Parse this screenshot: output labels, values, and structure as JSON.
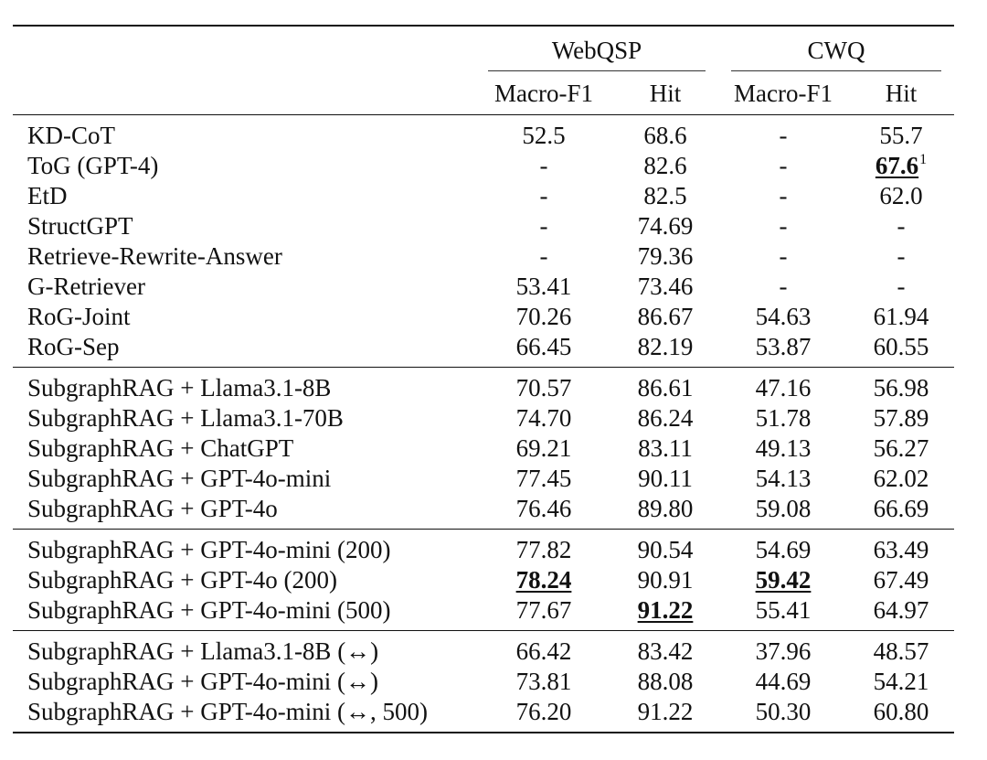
{
  "table": {
    "groups": [
      {
        "label": "WebQSP",
        "columns": [
          "Macro-F1",
          "Hit"
        ]
      },
      {
        "label": "CWQ",
        "columns": [
          "Macro-F1",
          "Hit"
        ]
      }
    ],
    "footnote_mark": "1",
    "sections": [
      [
        {
          "method": "KD-CoT",
          "webqsp_f1": "52.5",
          "webqsp_hit": "68.6",
          "cwq_f1": "-",
          "cwq_hit": "55.7"
        },
        {
          "method": "ToG (GPT-4)",
          "webqsp_f1": "-",
          "webqsp_hit": "82.6",
          "cwq_f1": "-",
          "cwq_hit": "67.6"
        },
        {
          "method": "EtD",
          "webqsp_f1": "-",
          "webqsp_hit": "82.5",
          "cwq_f1": "-",
          "cwq_hit": "62.0"
        },
        {
          "method": "StructGPT",
          "webqsp_f1": "-",
          "webqsp_hit": "74.69",
          "cwq_f1": "-",
          "cwq_hit": "-"
        },
        {
          "method": "Retrieve-Rewrite-Answer",
          "webqsp_f1": "-",
          "webqsp_hit": "79.36",
          "cwq_f1": "-",
          "cwq_hit": "-"
        },
        {
          "method": "G-Retriever",
          "webqsp_f1": "53.41",
          "webqsp_hit": "73.46",
          "cwq_f1": "-",
          "cwq_hit": "-"
        },
        {
          "method": "RoG-Joint",
          "webqsp_f1": "70.26",
          "webqsp_hit": "86.67",
          "cwq_f1": "54.63",
          "cwq_hit": "61.94"
        },
        {
          "method": "RoG-Sep",
          "webqsp_f1": "66.45",
          "webqsp_hit": "82.19",
          "cwq_f1": "53.87",
          "cwq_hit": "60.55"
        }
      ],
      [
        {
          "method": "SubgraphRAG + Llama3.1-8B",
          "webqsp_f1": "70.57",
          "webqsp_hit": "86.61",
          "cwq_f1": "47.16",
          "cwq_hit": "56.98"
        },
        {
          "method": "SubgraphRAG + Llama3.1-70B",
          "webqsp_f1": "74.70",
          "webqsp_hit": "86.24",
          "cwq_f1": "51.78",
          "cwq_hit": "57.89"
        },
        {
          "method": "SubgraphRAG + ChatGPT",
          "webqsp_f1": "69.21",
          "webqsp_hit": "83.11",
          "cwq_f1": "49.13",
          "cwq_hit": "56.27"
        },
        {
          "method": "SubgraphRAG + GPT-4o-mini",
          "webqsp_f1": "77.45",
          "webqsp_hit": "90.11",
          "cwq_f1": "54.13",
          "cwq_hit": "62.02"
        },
        {
          "method": "SubgraphRAG + GPT-4o",
          "webqsp_f1": "76.46",
          "webqsp_hit": "89.80",
          "cwq_f1": "59.08",
          "cwq_hit": "66.69"
        }
      ],
      [
        {
          "method": "SubgraphRAG + GPT-4o-mini (200)",
          "webqsp_f1": "77.82",
          "webqsp_hit": "90.54",
          "cwq_f1": "54.69",
          "cwq_hit": "63.49"
        },
        {
          "method": "SubgraphRAG + GPT-4o (200)",
          "webqsp_f1": "78.24",
          "webqsp_hit": "90.91",
          "cwq_f1": "59.42",
          "cwq_hit": "67.49"
        },
        {
          "method": "SubgraphRAG + GPT-4o-mini (500)",
          "webqsp_f1": "77.67",
          "webqsp_hit": "91.22",
          "cwq_f1": "55.41",
          "cwq_hit": "64.97"
        }
      ],
      [
        {
          "method": "SubgraphRAG + Llama3.1-8B (↔)",
          "webqsp_f1": "66.42",
          "webqsp_hit": "83.42",
          "cwq_f1": "37.96",
          "cwq_hit": "48.57"
        },
        {
          "method": "SubgraphRAG + GPT-4o-mini (↔)",
          "webqsp_f1": "73.81",
          "webqsp_hit": "88.08",
          "cwq_f1": "44.69",
          "cwq_hit": "54.21"
        },
        {
          "method": "SubgraphRAG + GPT-4o-mini (↔, 500)",
          "webqsp_f1": "76.20",
          "webqsp_hit": "91.22",
          "cwq_f1": "50.30",
          "cwq_hit": "60.80"
        }
      ]
    ],
    "best_cells": [
      {
        "section": 0,
        "row": 1,
        "col": "cwq_hit"
      },
      {
        "section": 2,
        "row": 1,
        "col": "webqsp_f1"
      },
      {
        "section": 2,
        "row": 1,
        "col": "cwq_f1"
      },
      {
        "section": 2,
        "row": 2,
        "col": "webqsp_hit"
      }
    ]
  }
}
